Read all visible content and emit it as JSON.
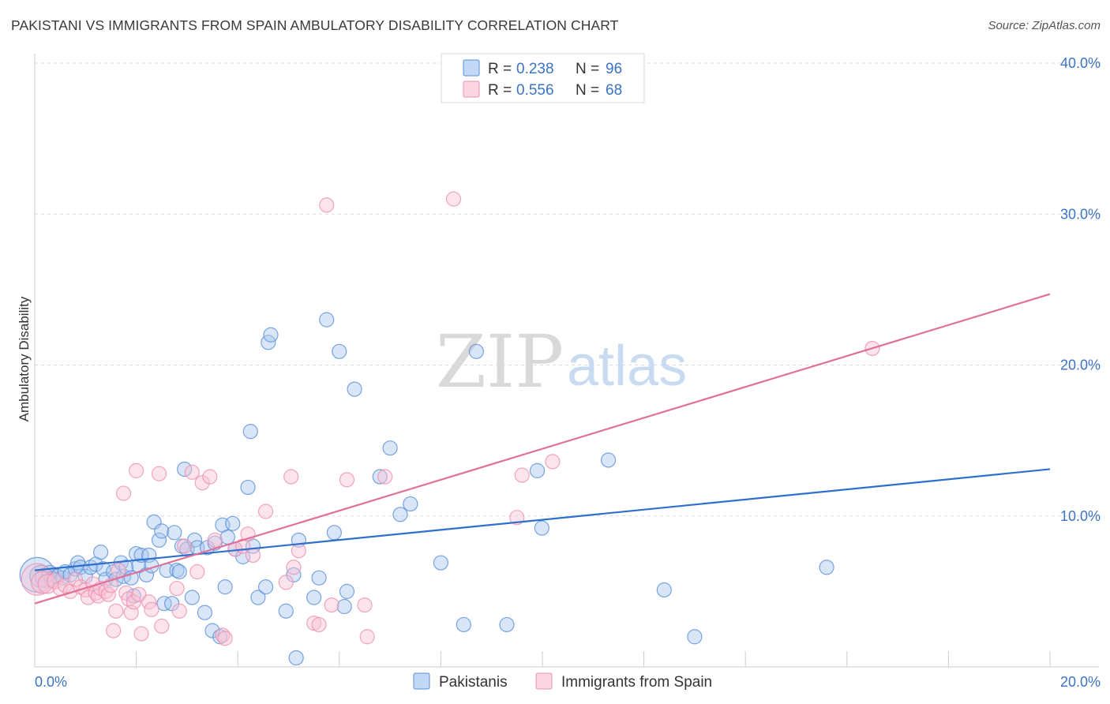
{
  "title": "PAKISTANI VS IMMIGRANTS FROM SPAIN AMBULATORY DISABILITY CORRELATION CHART",
  "source": "Source: ZipAtlas.com",
  "watermark": {
    "zip": "ZIP",
    "atlas": "atlas"
  },
  "chart_data": {
    "type": "scatter",
    "ylabel": "Ambulatory Disability",
    "xlabel": "",
    "xlim": [
      0,
      20
    ],
    "ylim": [
      0,
      40
    ],
    "x_tick_labels": [
      {
        "value": 0,
        "label": "0.0%"
      },
      {
        "value": 20,
        "label": "20.0%"
      }
    ],
    "y_tick_labels": [
      {
        "value": 10,
        "label": "10.0%"
      },
      {
        "value": 20,
        "label": "20.0%"
      },
      {
        "value": 30,
        "label": "30.0%"
      },
      {
        "value": 40,
        "label": "40.0%"
      }
    ],
    "legend": {
      "r_label": "R =",
      "n_label": "N =",
      "entries": [
        {
          "r": "0.238",
          "n": "96"
        },
        {
          "r": "0.556",
          "n": "68"
        }
      ]
    },
    "series": [
      {
        "name": "Pakistanis",
        "color": "#6d9eeb",
        "stroke": "#5a8fd8",
        "fill": "#a9c7f0",
        "line_color": "#2f6fcc",
        "trend": {
          "x": [
            0,
            20
          ],
          "y": [
            6.4,
            13.1
          ]
        },
        "points": [
          [
            0.05,
            6.1,
            22
          ],
          [
            0.12,
            6.0,
            14
          ],
          [
            0.2,
            5.9,
            12
          ],
          [
            0.3,
            6.2,
            10
          ],
          [
            0.35,
            5.8,
            10
          ],
          [
            0.45,
            6.0,
            9
          ],
          [
            0.55,
            5.9,
            9
          ],
          [
            0.6,
            6.3,
            9
          ],
          [
            0.7,
            6.1,
            9
          ],
          [
            0.8,
            6.5,
            9
          ],
          [
            0.85,
            6.9,
            9
          ],
          [
            0.9,
            6.6,
            9
          ],
          [
            1.0,
            6.0,
            9
          ],
          [
            1.1,
            6.6,
            9
          ],
          [
            1.2,
            6.8,
            9
          ],
          [
            1.3,
            7.6,
            9
          ],
          [
            1.35,
            6.5,
            9
          ],
          [
            1.4,
            5.8,
            9
          ],
          [
            1.55,
            6.3,
            9
          ],
          [
            1.6,
            5.8,
            9
          ],
          [
            1.7,
            6.9,
            9
          ],
          [
            1.75,
            6.0,
            9
          ],
          [
            1.8,
            6.6,
            9
          ],
          [
            1.9,
            5.9,
            9
          ],
          [
            1.95,
            4.7,
            9
          ],
          [
            2.0,
            7.5,
            9
          ],
          [
            2.05,
            6.7,
            9
          ],
          [
            2.1,
            7.4,
            9
          ],
          [
            2.2,
            6.1,
            9
          ],
          [
            2.25,
            7.4,
            9
          ],
          [
            2.3,
            6.7,
            9
          ],
          [
            2.35,
            9.6,
            9
          ],
          [
            2.45,
            8.4,
            9
          ],
          [
            2.5,
            9.0,
            9
          ],
          [
            2.55,
            4.2,
            9
          ],
          [
            2.6,
            6.4,
            9
          ],
          [
            2.7,
            4.2,
            9
          ],
          [
            2.75,
            8.9,
            9
          ],
          [
            2.8,
            6.4,
            9
          ],
          [
            2.85,
            6.3,
            9
          ],
          [
            2.9,
            8.0,
            9
          ],
          [
            2.95,
            13.1,
            9
          ],
          [
            3.0,
            7.8,
            9
          ],
          [
            3.1,
            4.6,
            9
          ],
          [
            3.15,
            8.4,
            9
          ],
          [
            3.2,
            7.9,
            9
          ],
          [
            3.35,
            3.6,
            9
          ],
          [
            3.4,
            7.9,
            9
          ],
          [
            3.5,
            2.4,
            9
          ],
          [
            3.55,
            8.2,
            9
          ],
          [
            3.65,
            2.0,
            9
          ],
          [
            3.7,
            9.4,
            9
          ],
          [
            3.75,
            5.3,
            9
          ],
          [
            3.8,
            8.6,
            9
          ],
          [
            3.9,
            9.5,
            9
          ],
          [
            3.95,
            7.8,
            9
          ],
          [
            4.1,
            7.3,
            9
          ],
          [
            4.2,
            11.9,
            9
          ],
          [
            4.25,
            15.6,
            9
          ],
          [
            4.3,
            8.0,
            9
          ],
          [
            4.4,
            4.6,
            9
          ],
          [
            4.55,
            5.3,
            9
          ],
          [
            4.6,
            21.5,
            9
          ],
          [
            4.65,
            22.0,
            9
          ],
          [
            4.95,
            3.7,
            9
          ],
          [
            5.1,
            6.1,
            9
          ],
          [
            5.15,
            0.6,
            9
          ],
          [
            5.2,
            8.4,
            9
          ],
          [
            5.5,
            4.6,
            9
          ],
          [
            5.6,
            5.9,
            9
          ],
          [
            5.75,
            23.0,
            9
          ],
          [
            5.9,
            8.9,
            9
          ],
          [
            6.0,
            20.9,
            9
          ],
          [
            6.1,
            4.0,
            9
          ],
          [
            6.15,
            5.0,
            9
          ],
          [
            6.3,
            18.4,
            9
          ],
          [
            6.8,
            12.6,
            9
          ],
          [
            7.0,
            14.5,
            9
          ],
          [
            7.2,
            10.1,
            9
          ],
          [
            7.4,
            10.8,
            9
          ],
          [
            8.0,
            6.9,
            9
          ],
          [
            8.45,
            2.8,
            9
          ],
          [
            8.7,
            20.9,
            9
          ],
          [
            9.3,
            2.8,
            9
          ],
          [
            9.9,
            13.0,
            9
          ],
          [
            9.99,
            9.2,
            9
          ],
          [
            11.3,
            13.7,
            9
          ],
          [
            12.4,
            5.1,
            9
          ],
          [
            13.0,
            2.0,
            9
          ],
          [
            15.6,
            6.6,
            9
          ]
        ]
      },
      {
        "name": "Immigrants from Spain",
        "color": "#f4a7c0",
        "stroke": "#ec8fb0",
        "fill": "#f8c3d5",
        "line_color": "#e0709a",
        "trend": {
          "x": [
            0,
            20
          ],
          "y": [
            4.2,
            24.7
          ]
        },
        "points": [
          [
            0.05,
            5.8,
            20
          ],
          [
            0.15,
            5.6,
            14
          ],
          [
            0.25,
            5.5,
            12
          ],
          [
            0.4,
            5.7,
            10
          ],
          [
            0.5,
            5.2,
            9
          ],
          [
            0.6,
            5.4,
            9
          ],
          [
            0.7,
            5.0,
            9
          ],
          [
            0.8,
            5.8,
            9
          ],
          [
            0.9,
            5.3,
            9
          ],
          [
            1.0,
            5.1,
            9
          ],
          [
            1.05,
            4.6,
            9
          ],
          [
            1.15,
            5.5,
            9
          ],
          [
            1.2,
            4.9,
            9
          ],
          [
            1.25,
            4.7,
            9
          ],
          [
            1.3,
            5.2,
            9
          ],
          [
            1.4,
            5.0,
            9
          ],
          [
            1.45,
            4.8,
            9
          ],
          [
            1.5,
            5.4,
            9
          ],
          [
            1.55,
            2.4,
            9
          ],
          [
            1.6,
            3.7,
            9
          ],
          [
            1.65,
            6.4,
            9
          ],
          [
            1.75,
            11.5,
            9
          ],
          [
            1.8,
            4.9,
            9
          ],
          [
            1.85,
            4.5,
            9
          ],
          [
            1.9,
            3.6,
            9
          ],
          [
            1.95,
            4.3,
            9
          ],
          [
            2.0,
            13.0,
            9
          ],
          [
            2.05,
            4.8,
            9
          ],
          [
            2.1,
            2.2,
            9
          ],
          [
            2.25,
            4.3,
            9
          ],
          [
            2.3,
            3.8,
            9
          ],
          [
            2.45,
            12.8,
            9
          ],
          [
            2.5,
            2.7,
            9
          ],
          [
            2.8,
            5.2,
            9
          ],
          [
            2.85,
            3.7,
            9
          ],
          [
            2.95,
            8.0,
            9
          ],
          [
            3.1,
            12.9,
            9
          ],
          [
            3.2,
            6.3,
            9
          ],
          [
            3.3,
            12.2,
            9
          ],
          [
            3.45,
            12.6,
            9
          ],
          [
            3.55,
            8.4,
            9
          ],
          [
            3.7,
            2.1,
            9
          ],
          [
            3.75,
            1.9,
            9
          ],
          [
            3.95,
            7.8,
            9
          ],
          [
            4.1,
            8.0,
            9
          ],
          [
            4.2,
            8.8,
            9
          ],
          [
            4.3,
            7.4,
            9
          ],
          [
            4.55,
            10.3,
            9
          ],
          [
            4.95,
            5.6,
            9
          ],
          [
            5.05,
            12.6,
            9
          ],
          [
            5.1,
            6.6,
            9
          ],
          [
            5.2,
            7.7,
            9
          ],
          [
            5.5,
            2.9,
            9
          ],
          [
            5.6,
            2.8,
            9
          ],
          [
            5.75,
            30.6,
            9
          ],
          [
            5.85,
            4.1,
            9
          ],
          [
            6.15,
            12.4,
            9
          ],
          [
            6.5,
            4.1,
            9
          ],
          [
            6.55,
            2.0,
            9
          ],
          [
            6.9,
            12.6,
            9
          ],
          [
            8.25,
            31.0,
            9
          ],
          [
            9.5,
            9.9,
            9
          ],
          [
            9.6,
            12.7,
            9
          ],
          [
            10.2,
            13.6,
            9
          ],
          [
            16.5,
            21.1,
            9
          ]
        ]
      }
    ]
  }
}
